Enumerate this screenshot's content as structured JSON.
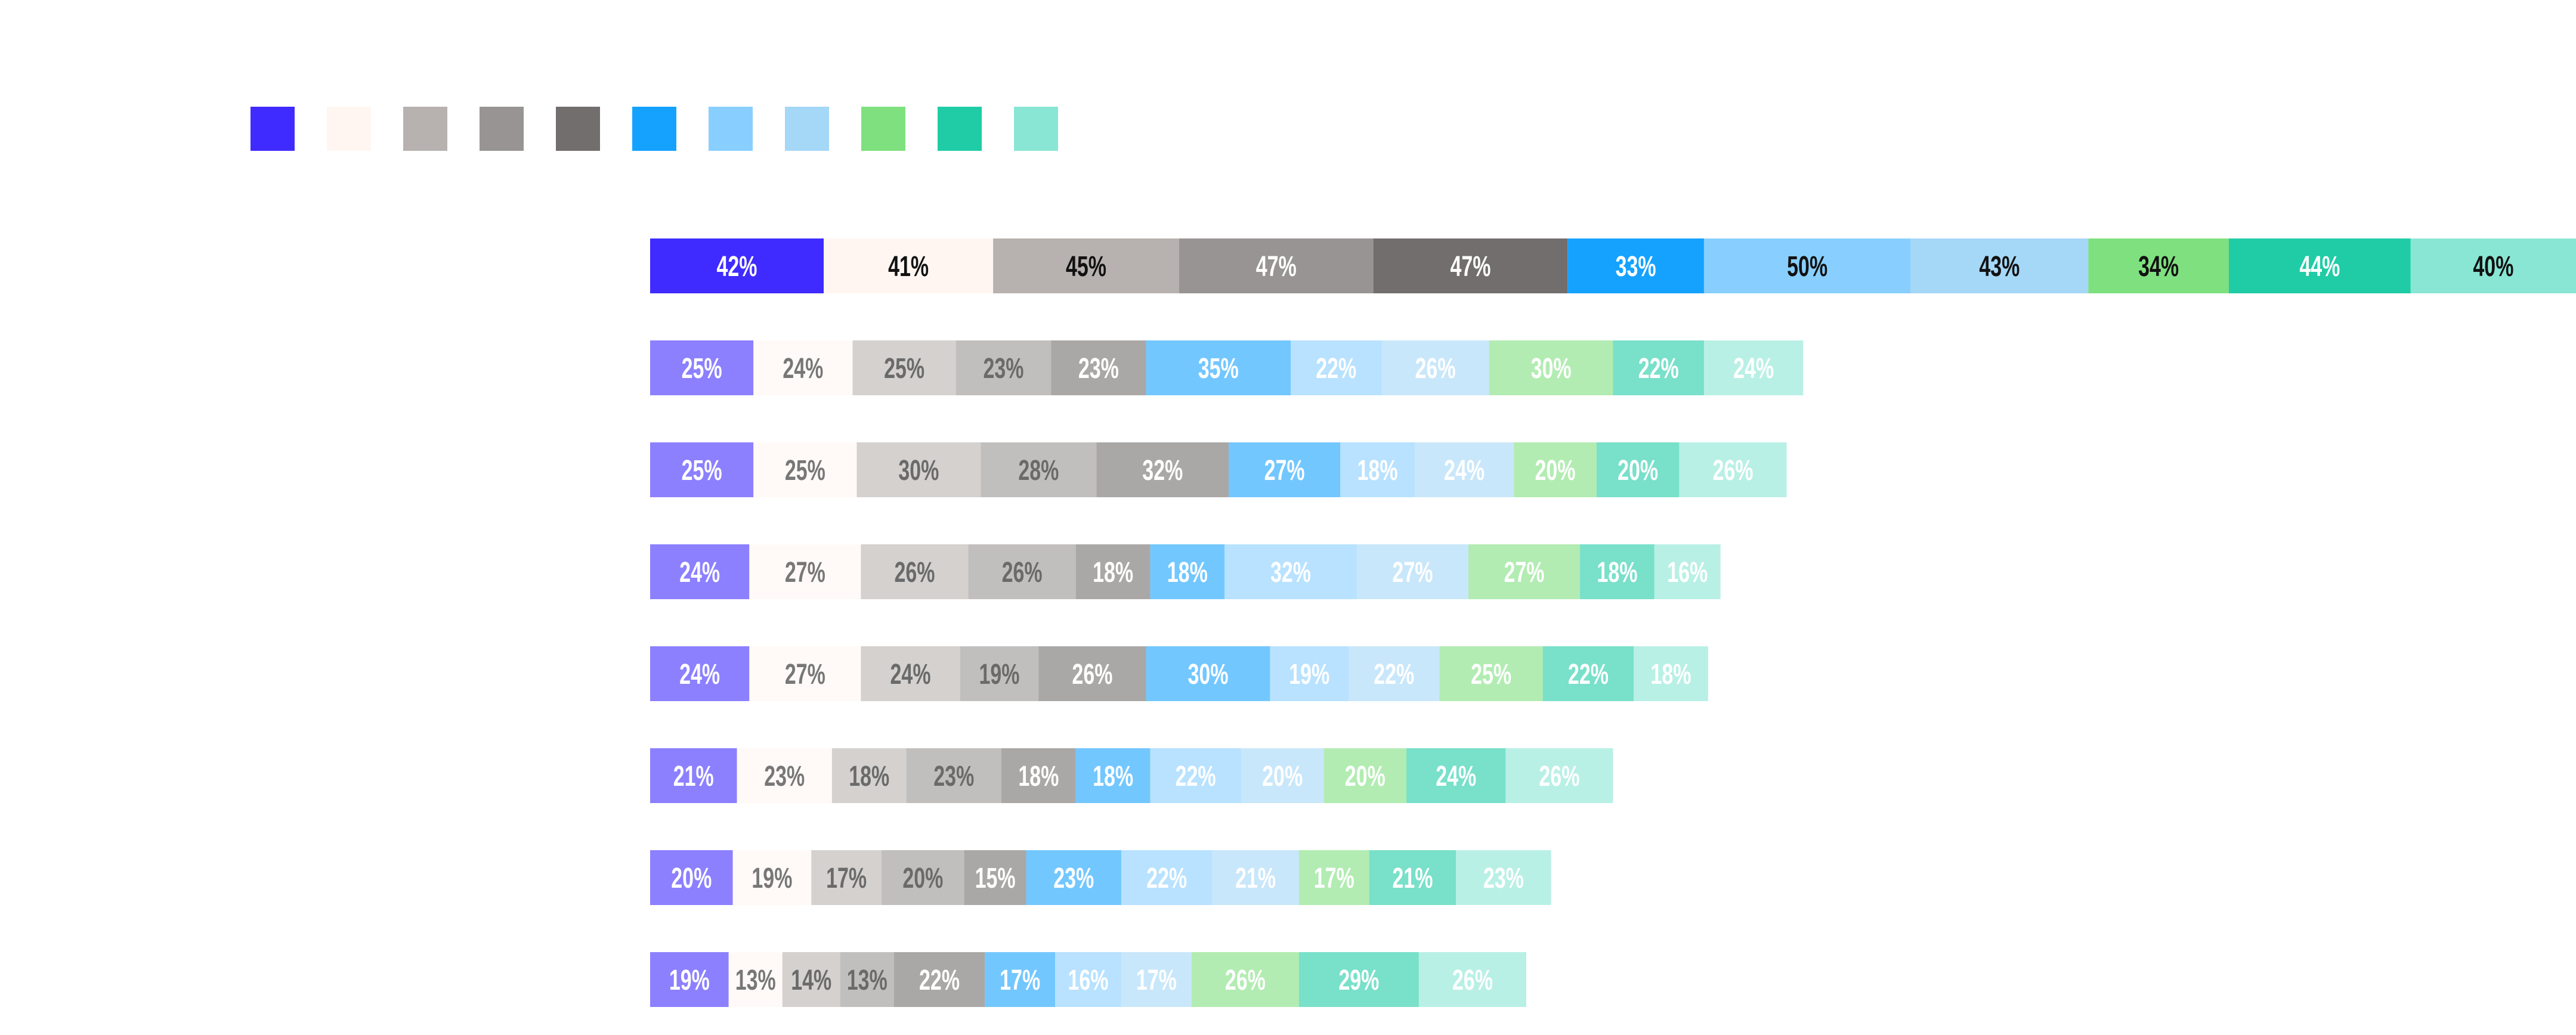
{
  "chart_data": {
    "type": "bar",
    "orientation": "horizontal",
    "stacked": true,
    "title": "",
    "legend": {
      "placement": "top"
    },
    "categories": [
      "",
      "",
      "",
      "",
      "",
      "",
      "",
      ""
    ],
    "series": [
      {
        "name": "",
        "color": "#3F2BFF",
        "values": [
          42,
          25,
          25,
          24,
          24,
          21,
          20,
          19
        ]
      },
      {
        "name": "",
        "color": "#FFF6F2",
        "values": [
          41,
          24,
          25,
          27,
          27,
          23,
          19,
          13
        ]
      },
      {
        "name": "",
        "color": "#B7B2AF",
        "values": [
          45,
          25,
          30,
          26,
          24,
          18,
          17,
          14
        ]
      },
      {
        "name": "",
        "color": "#979493",
        "values": [
          47,
          23,
          28,
          26,
          19,
          23,
          20,
          13
        ]
      },
      {
        "name": "",
        "color": "#716E6D",
        "values": [
          47,
          23,
          32,
          18,
          26,
          18,
          15,
          22
        ]
      },
      {
        "name": "",
        "color": "#15A2FF",
        "values": [
          33,
          35,
          27,
          18,
          30,
          18,
          23,
          17
        ]
      },
      {
        "name": "",
        "color": "#88CFFF",
        "values": [
          50,
          22,
          18,
          32,
          19,
          22,
          22,
          16
        ]
      },
      {
        "name": "",
        "color": "#A5D7F7",
        "values": [
          43,
          26,
          24,
          27,
          22,
          20,
          21,
          17
        ]
      },
      {
        "name": "",
        "color": "#7FE07F",
        "values": [
          34,
          30,
          20,
          27,
          25,
          20,
          17,
          26
        ]
      },
      {
        "name": "",
        "color": "#1FCCA6",
        "values": [
          44,
          22,
          20,
          18,
          22,
          24,
          21,
          29
        ]
      },
      {
        "name": "",
        "color": "#8AE6D4",
        "values": [
          40,
          24,
          26,
          16,
          18,
          26,
          23,
          26
        ]
      }
    ],
    "value_suffix": "%",
    "grid": false
  }
}
